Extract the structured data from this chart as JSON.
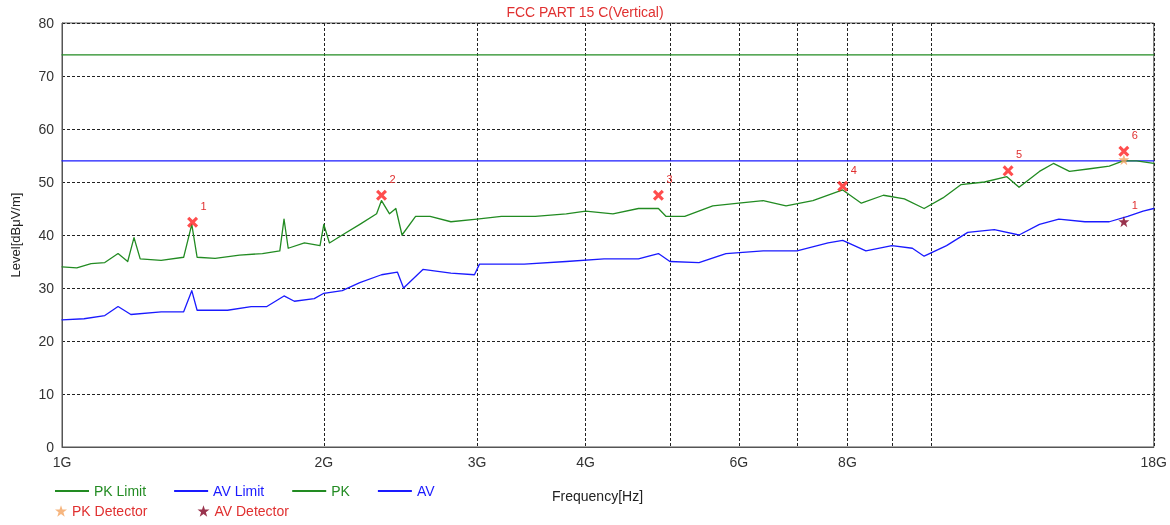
{
  "chart_data": {
    "type": "line",
    "title": "FCC PART 15 C(Vertical)",
    "xlabel": "Frequency[Hz]",
    "ylabel": "Level[dBμV/m]",
    "log": "x",
    "xlim": [
      1,
      18
    ],
    "ylim": [
      0,
      80
    ],
    "xticks": [
      {
        "value": 1,
        "label": "1G"
      },
      {
        "value": 2,
        "label": "2G"
      },
      {
        "value": 3,
        "label": "3G"
      },
      {
        "value": 4,
        "label": "4G"
      },
      {
        "value": 5,
        "label": null
      },
      {
        "value": 6,
        "label": "6G"
      },
      {
        "value": 7,
        "label": null
      },
      {
        "value": 8,
        "label": "8G"
      },
      {
        "value": 9,
        "label": null
      },
      {
        "value": 10,
        "label": null
      },
      {
        "value": 18,
        "label": "18G"
      }
    ],
    "yticks": [
      0,
      10,
      20,
      30,
      40,
      50,
      60,
      70,
      80
    ],
    "grid": true,
    "legend": "bottom left",
    "marker": "none",
    "line_style": "solid",
    "series": [
      {
        "name": "PK Limit",
        "color": "#228b22",
        "x": [
          1,
          18
        ],
        "values": [
          74,
          74
        ]
      },
      {
        "name": "AV Limit",
        "color": "#1a1aff",
        "x": [
          1,
          18
        ],
        "values": [
          54,
          54
        ]
      },
      {
        "name": "PK",
        "color": "#228b22",
        "x": [
          1.0,
          1.04,
          1.08,
          1.12,
          1.16,
          1.19,
          1.21,
          1.23,
          1.3,
          1.38,
          1.41,
          1.43,
          1.5,
          1.6,
          1.7,
          1.78,
          1.8,
          1.82,
          1.9,
          1.98,
          2.0,
          2.03,
          2.1,
          2.2,
          2.3,
          2.33,
          2.38,
          2.42,
          2.46,
          2.55,
          2.65,
          2.8,
          3.0,
          3.2,
          3.5,
          3.8,
          4.0,
          4.3,
          4.6,
          4.85,
          4.95,
          5.2,
          5.6,
          6.0,
          6.4,
          6.8,
          7.3,
          7.9,
          8.3,
          8.8,
          9.3,
          9.8,
          10.3,
          10.8,
          11.5,
          12.2,
          12.6,
          13.3,
          13.8,
          14.4,
          15.2,
          16.0,
          16.6,
          17.2,
          18.0
        ],
        "values": [
          34.0,
          33.8,
          34.6,
          34.8,
          36.5,
          35.0,
          39.5,
          35.5,
          35.2,
          35.8,
          42.0,
          35.8,
          35.6,
          36.2,
          36.5,
          37.0,
          43.0,
          37.5,
          38.5,
          38.0,
          42.0,
          38.5,
          40,
          42,
          44,
          46.5,
          44,
          45,
          40,
          43.5,
          43.5,
          42.5,
          43,
          43.5,
          43.5,
          44,
          44.5,
          44,
          45,
          45,
          43.5,
          43.5,
          45.5,
          46,
          46.5,
          45.5,
          46.5,
          48.5,
          46,
          47.5,
          46.8,
          45,
          47,
          49.5,
          50,
          51,
          49,
          52,
          53.5,
          52,
          52.5,
          53,
          54,
          54,
          53.5
        ]
      },
      {
        "name": "AV",
        "color": "#1a1aff",
        "x": [
          1.0,
          1.06,
          1.12,
          1.16,
          1.2,
          1.3,
          1.38,
          1.41,
          1.43,
          1.55,
          1.65,
          1.72,
          1.8,
          1.85,
          1.95,
          2.0,
          2.1,
          2.2,
          2.33,
          2.43,
          2.47,
          2.6,
          2.8,
          2.98,
          3.02,
          3.4,
          3.8,
          4.2,
          4.6,
          4.85,
          5.0,
          5.4,
          5.8,
          6.4,
          7.0,
          7.6,
          7.9,
          8.4,
          9.0,
          9.5,
          9.8,
          10.4,
          11.0,
          11.8,
          12.6,
          13.3,
          14.0,
          15.0,
          16.0,
          16.8,
          17.5,
          18.0
        ],
        "values": [
          24.0,
          24.2,
          24.8,
          26.5,
          25,
          25.5,
          25.5,
          29.5,
          25.8,
          25.8,
          26.5,
          26.5,
          28.5,
          27.5,
          28,
          29,
          29.5,
          31,
          32.5,
          33,
          30,
          33.5,
          32.8,
          32.5,
          34.5,
          34.5,
          35,
          35.5,
          35.5,
          36.5,
          35,
          34.8,
          36.5,
          37,
          37,
          38.5,
          39,
          37,
          38,
          37.5,
          36,
          38,
          40.5,
          41,
          40,
          42,
          43,
          42.5,
          42.5,
          43.5,
          44.5,
          45
        ]
      },
      {
        "type": "scatter",
        "marker": "cross",
        "color": "#ff2020",
        "x": [
          1.413,
          2.33,
          4.85,
          7.9,
          12.24,
          16.63
        ],
        "values": [
          42.4,
          47.5,
          47.5,
          49.2,
          52.1,
          55.8
        ]
      },
      {
        "name": "PK Detector",
        "type": "scatter",
        "marker": "star",
        "color": "#f4a460",
        "x": [
          16.63
        ],
        "values": [
          54.2
        ]
      },
      {
        "name": "AV Detector",
        "type": "scatter",
        "marker": "star",
        "color": "#800020",
        "x": [
          16.63
        ],
        "values": [
          42.5
        ]
      }
    ],
    "annotations": [
      {
        "text": "1",
        "x": 1.413,
        "y": 42.4
      },
      {
        "text": "2",
        "x": 2.33,
        "y": 47.5
      },
      {
        "text": "3",
        "x": 4.85,
        "y": 47.5
      },
      {
        "text": "4",
        "x": 7.9,
        "y": 49.2
      },
      {
        "text": "5",
        "x": 12.24,
        "y": 52.1
      },
      {
        "text": "6",
        "x": 16.63,
        "y": 55.8
      },
      {
        "text": "1",
        "x": 16.63,
        "y": 42.5
      }
    ]
  }
}
